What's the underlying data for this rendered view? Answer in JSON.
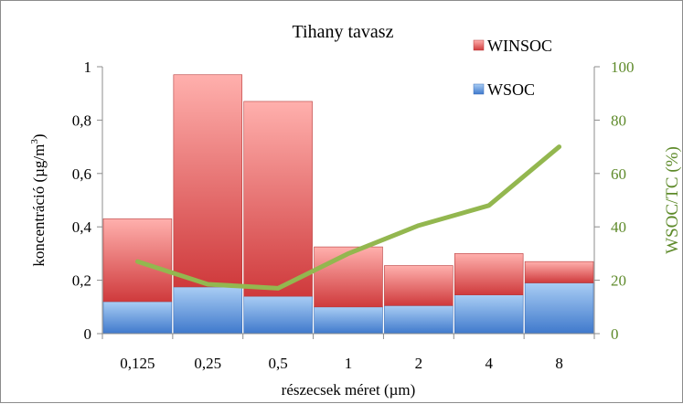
{
  "chart_data": {
    "type": "bar",
    "title": "Tihany tavasz",
    "xlabel": "részecsek méret (µm)",
    "ylabel": "koncentráció (µg/m",
    "ylabel_sup": "3",
    "ylabel_tail": ")",
    "y2label": "WSOC/TC (%)",
    "categories": [
      "0,125",
      "0,25",
      "0,5",
      "1",
      "2",
      "4",
      "8"
    ],
    "ylim": [
      0,
      1
    ],
    "yticks": [
      "0",
      "0,2",
      "0,4",
      "0,6",
      "0,8",
      "1"
    ],
    "y2lim": [
      0,
      100
    ],
    "y2ticks": [
      "0",
      "20",
      "40",
      "60",
      "80",
      "100"
    ],
    "stacked": true,
    "series": [
      {
        "name": "WSOC",
        "axis": "left",
        "kind": "bar",
        "color": "#5b9bd5",
        "values": [
          0.12,
          0.175,
          0.14,
          0.1,
          0.105,
          0.145,
          0.19
        ]
      },
      {
        "name": "WINSOC",
        "axis": "left",
        "kind": "bar",
        "color": "#e0595b",
        "values": [
          0.31,
          0.795,
          0.73,
          0.225,
          0.15,
          0.155,
          0.08
        ]
      },
      {
        "name": "",
        "axis": "right",
        "kind": "line",
        "color": "#93b74f",
        "values": [
          27,
          18.5,
          17,
          30,
          40.5,
          48,
          70
        ]
      }
    ],
    "legend": {
      "position": "top-right",
      "entries": [
        "WINSOC",
        "WSOC"
      ]
    },
    "y2_color": "#5e8a2a",
    "grid": false
  }
}
